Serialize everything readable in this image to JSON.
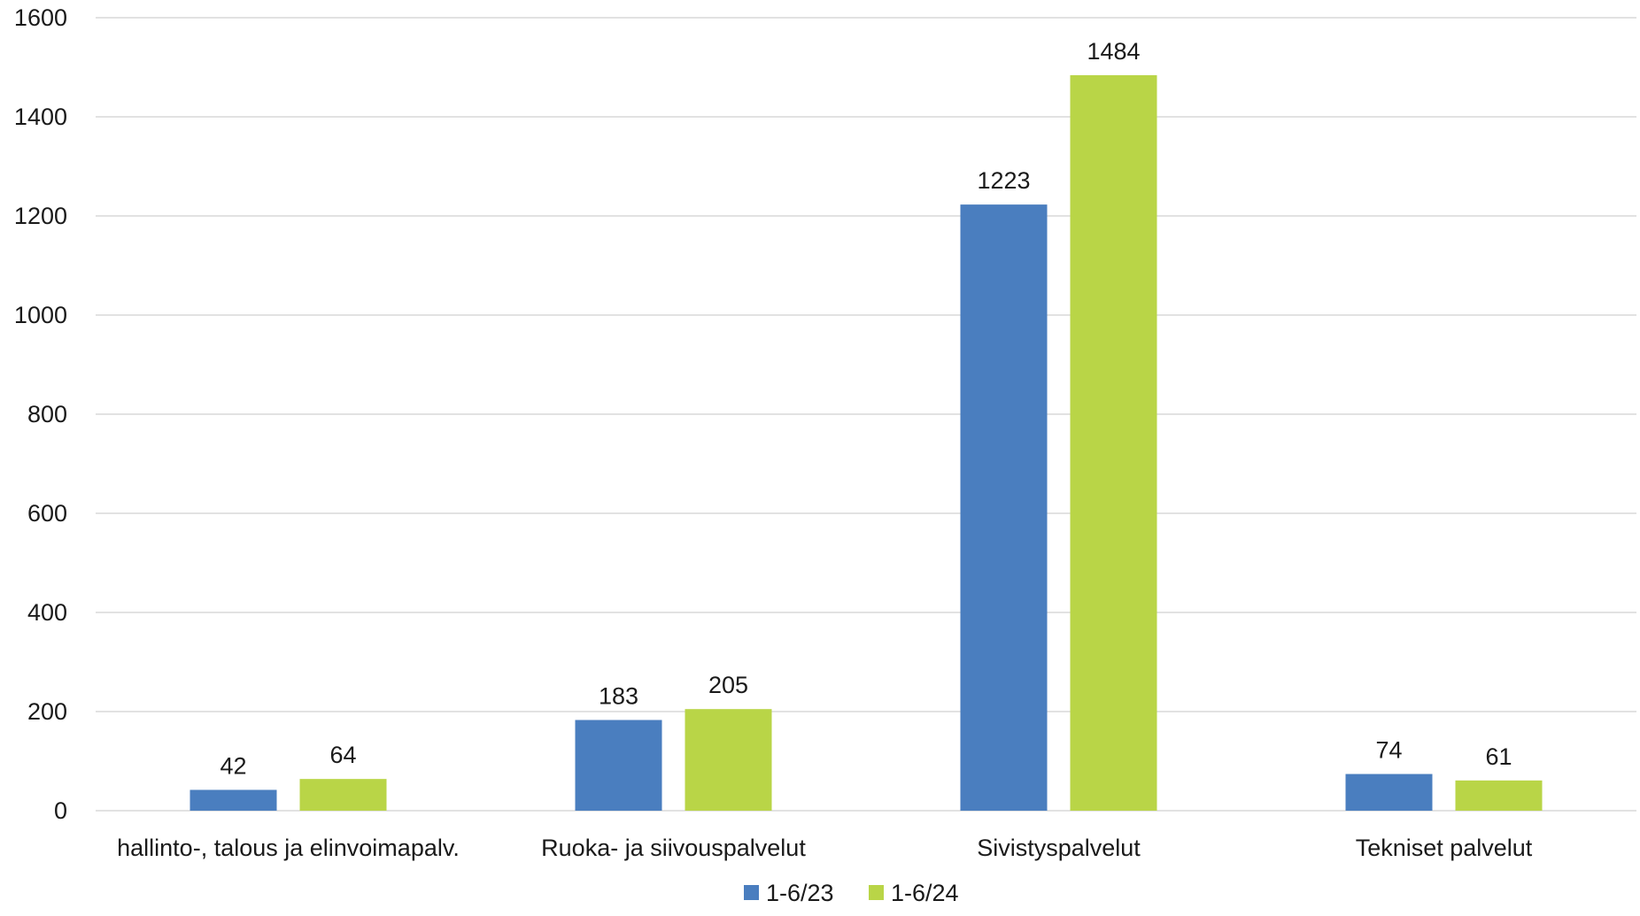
{
  "chart_data": {
    "type": "bar",
    "categories": [
      "hallinto-, talous ja elinvoimapalv.",
      "Ruoka- ja siivouspalvelut",
      "Sivistyspalvelut",
      "Tekniset palvelut"
    ],
    "series": [
      {
        "name": "1-6/23",
        "color": "#4a7ebf",
        "values": [
          42,
          183,
          1223,
          74
        ]
      },
      {
        "name": "1-6/24",
        "color": "#b9d547",
        "values": [
          64,
          205,
          1484,
          61
        ]
      }
    ],
    "ylim": [
      0,
      1600
    ],
    "yticks": [
      0,
      200,
      400,
      600,
      800,
      1000,
      1200,
      1400,
      1600
    ],
    "grid": true,
    "legend_position": "bottom",
    "data_labels": true
  }
}
